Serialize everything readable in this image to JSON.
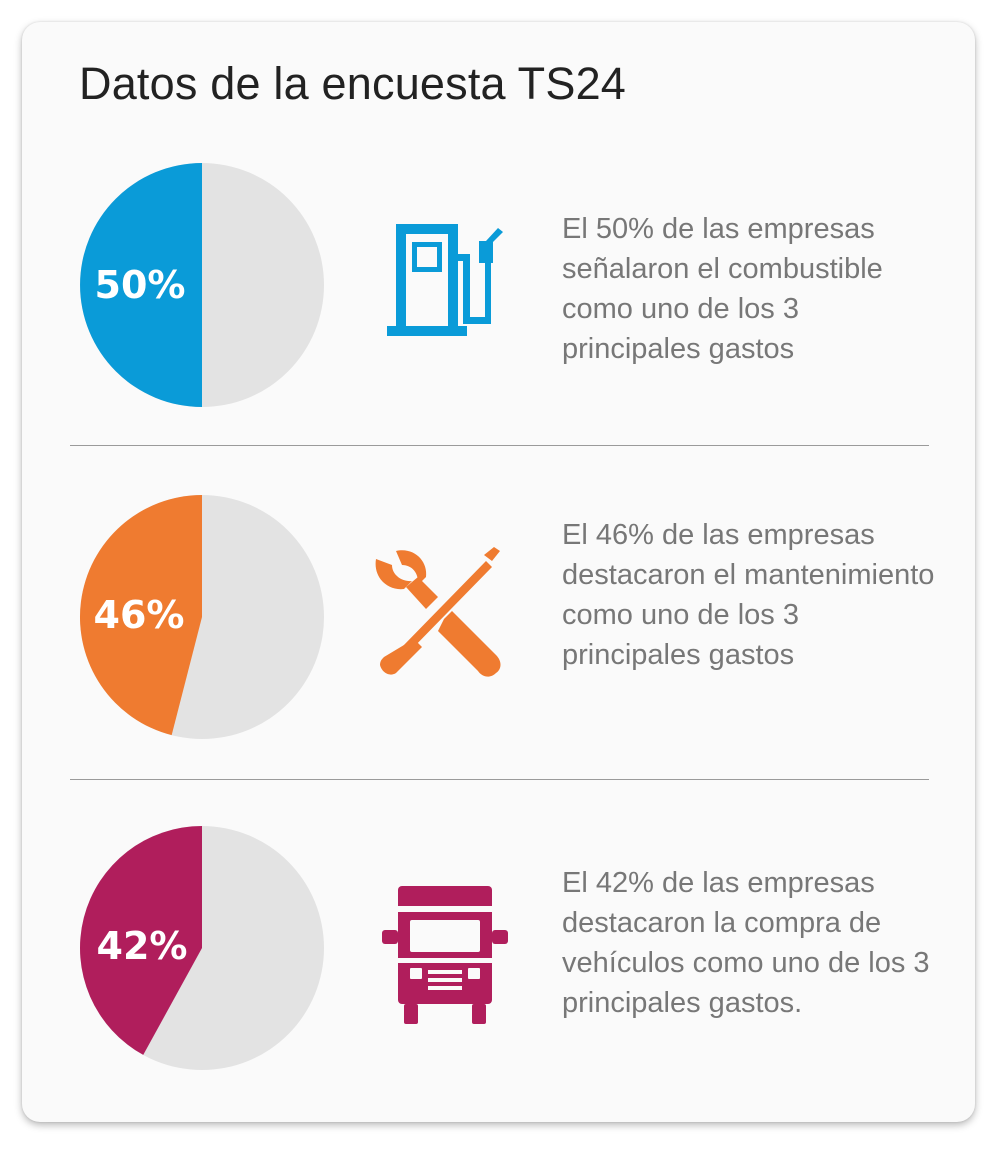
{
  "title": "Datos de la encuesta TS24",
  "colors": {
    "slice_bg": "#e3e3e3",
    "blue": "#0a9bd8",
    "orange": "#ef7b30",
    "magenta": "#b01e5c"
  },
  "chart_data": {
    "type": "pie",
    "charts": [
      {
        "value": 50,
        "label": "50%",
        "color": "#0a9bd8",
        "icon": "fuel-pump-icon",
        "description": "El 50% de las empresas señalaron el combustible como uno de los 3 principales gastos"
      },
      {
        "value": 46,
        "label": "46%",
        "color": "#ef7b30",
        "icon": "wrench-screwdriver-icon",
        "description": "El 46% de las empresas destacaron el mantenimiento como uno de los 3 principales gastos"
      },
      {
        "value": 42,
        "label": "42%",
        "color": "#b01e5c",
        "icon": "truck-icon",
        "description": "El 42% de las empresas destacaron la compra de vehículos como uno de los 3 principales gastos."
      }
    ]
  }
}
